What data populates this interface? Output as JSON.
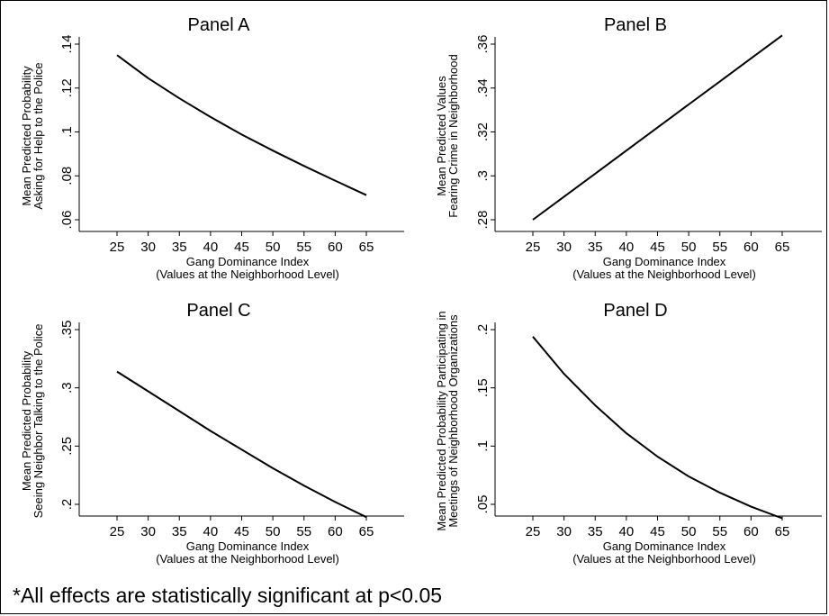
{
  "footnote": "*All effects are statistically significant at p<0.05",
  "chart_data": [
    {
      "type": "line",
      "title": "Panel A",
      "xlabel": [
        "Gang Dominance Index",
        "(Values at the Neighborhood Level)"
      ],
      "ylabel": [
        "Mean Predicted Probability",
        "Asking for Help to the Police"
      ],
      "xlim": [
        25,
        65
      ],
      "ylim": [
        0.06,
        0.14
      ],
      "xticks": [
        25,
        30,
        35,
        40,
        45,
        50,
        55,
        60,
        65
      ],
      "yticks": [
        0.06,
        0.08,
        0.1,
        0.12,
        0.14
      ],
      "ytick_labels": [
        ".06",
        ".08",
        ".1",
        ".12",
        ".14"
      ],
      "grid": false,
      "series": [
        {
          "x": [
            25,
            30,
            35,
            40,
            45,
            50,
            55,
            60,
            65
          ],
          "y": [
            0.135,
            0.1245,
            0.1153,
            0.1068,
            0.0988,
            0.0915,
            0.0845,
            0.0778,
            0.0712
          ]
        }
      ]
    },
    {
      "type": "line",
      "title": "Panel B",
      "xlabel": [
        "Gang Dominance Index",
        "(Values at the Neighborhood Level)"
      ],
      "ylabel": [
        "Mean Predicted Values",
        "Fearing Crime in Neighborhood"
      ],
      "xlim": [
        25,
        65
      ],
      "ylim": [
        0.28,
        0.36
      ],
      "xticks": [
        25,
        30,
        35,
        40,
        45,
        50,
        55,
        60,
        65
      ],
      "yticks": [
        0.28,
        0.3,
        0.32,
        0.34,
        0.36
      ],
      "ytick_labels": [
        ".28",
        ".3",
        ".32",
        ".34",
        ".36"
      ],
      "grid": false,
      "series": [
        {
          "x": [
            25,
            30,
            35,
            40,
            45,
            50,
            55,
            60,
            65
          ],
          "y": [
            0.28,
            0.2905,
            0.301,
            0.3115,
            0.322,
            0.3325,
            0.343,
            0.3535,
            0.364
          ]
        }
      ]
    },
    {
      "type": "line",
      "title": "Panel C",
      "xlabel": [
        "Gang Dominance Index",
        "(Values at the Neighborhood Level)"
      ],
      "ylabel": [
        "Mean Predicted Probability",
        "Seeing Neighbor Talking to the Police"
      ],
      "xlim": [
        25,
        65
      ],
      "ylim": [
        0.2,
        0.35
      ],
      "xticks": [
        25,
        30,
        35,
        40,
        45,
        50,
        55,
        60,
        65
      ],
      "yticks": [
        0.2,
        0.25,
        0.3,
        0.35
      ],
      "ytick_labels": [
        ".2",
        ".25",
        ".3",
        ".35"
      ],
      "grid": false,
      "series": [
        {
          "x": [
            25,
            30,
            35,
            40,
            45,
            50,
            55,
            60,
            65
          ],
          "y": [
            0.314,
            0.297,
            0.28,
            0.263,
            0.247,
            0.231,
            0.216,
            0.202,
            0.189
          ]
        }
      ]
    },
    {
      "type": "line",
      "title": "Panel D",
      "xlabel": [
        "Gang Dominance Index",
        "(Values at the Neighborhood Level)"
      ],
      "ylabel": [
        "Mean Predicted Probability Participating in",
        "Meetings of Neighborhood Organizations"
      ],
      "xlim": [
        25,
        65
      ],
      "ylim": [
        0.05,
        0.2
      ],
      "xticks": [
        25,
        30,
        35,
        40,
        45,
        50,
        55,
        60,
        65
      ],
      "yticks": [
        0.05,
        0.1,
        0.15,
        0.2
      ],
      "ytick_labels": [
        ".05",
        ".1",
        ".15",
        ".2"
      ],
      "grid": false,
      "series": [
        {
          "x": [
            25,
            30,
            35,
            40,
            45,
            50,
            55,
            60,
            65
          ],
          "y": [
            0.194,
            0.162,
            0.135,
            0.111,
            0.091,
            0.074,
            0.06,
            0.048,
            0.038
          ]
        }
      ]
    }
  ]
}
